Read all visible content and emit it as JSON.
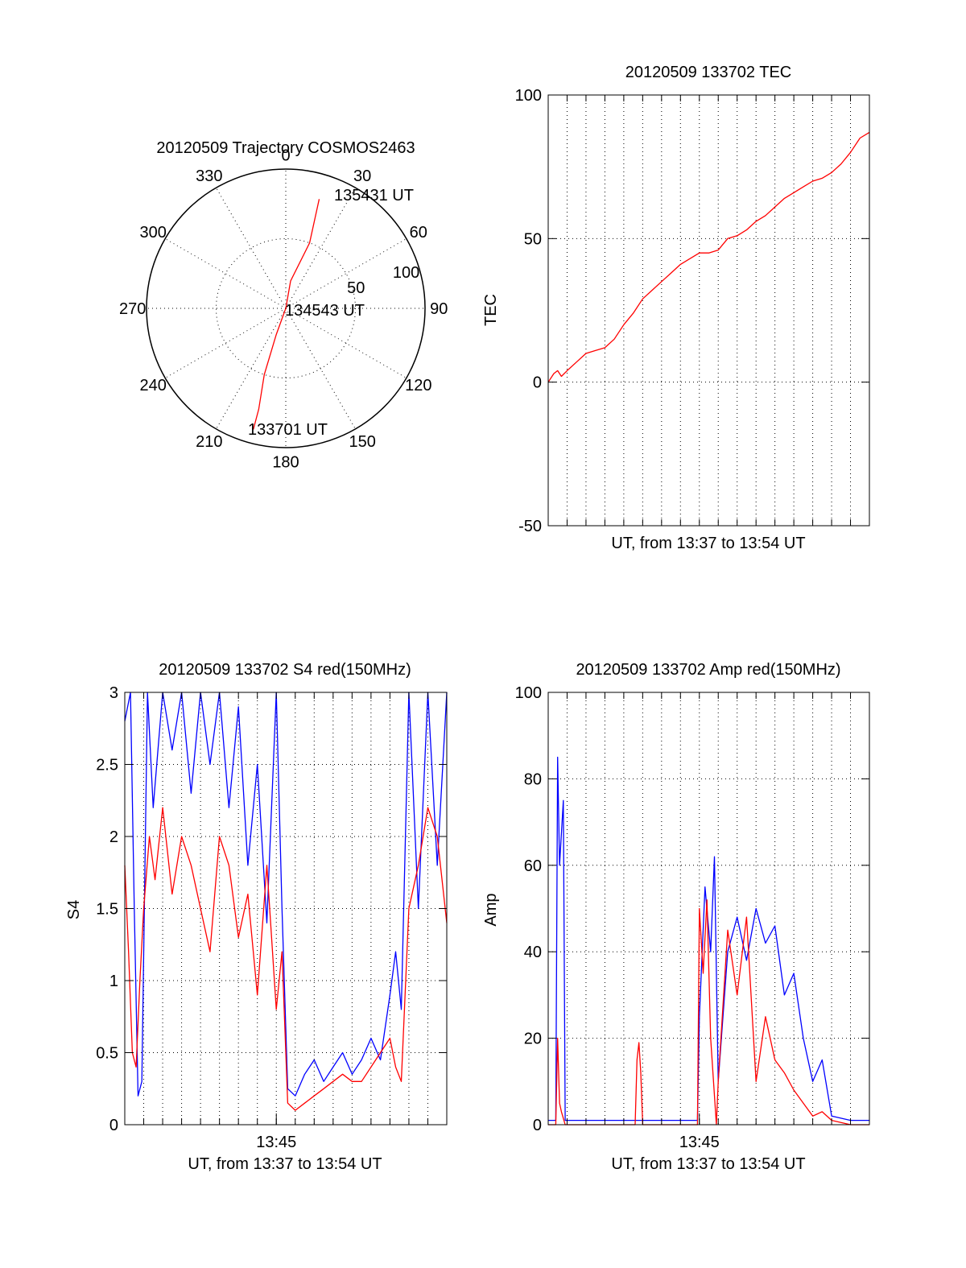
{
  "colors": {
    "red": "#ff0000",
    "blue": "#0000ff",
    "axis": "#000000",
    "grid": "#000000"
  },
  "chart_data": [
    {
      "id": "trajectory",
      "type": "polar",
      "title": "20120509 Trajectory COSMOS2463",
      "angle_labels": [
        "0",
        "30",
        "60",
        "90",
        "120",
        "150",
        "180",
        "210",
        "240",
        "270",
        "300",
        "330"
      ],
      "radial_labels": [
        "50",
        "100"
      ],
      "radial_values": [
        50,
        100
      ],
      "rmax": 100,
      "annotations": [
        "135431 UT",
        "134543 UT",
        "133701 UT"
      ],
      "series": [
        {
          "color": "red",
          "points": [
            [
              17,
              82
            ],
            [
              20,
              50
            ],
            [
              10,
              20
            ],
            [
              0,
              0
            ],
            [
              200,
              20
            ],
            [
              198,
              50
            ],
            [
              195,
              75
            ],
            [
              195,
              90
            ]
          ]
        }
      ]
    },
    {
      "id": "tec",
      "type": "line",
      "title": "20120509 133702 TEC",
      "xlabel": "UT, from 13:37 to 13:54 UT",
      "ylabel": "TEC",
      "xlim": [
        0,
        17
      ],
      "ylim": [
        -50,
        100
      ],
      "yticks": [
        -50,
        0,
        50,
        100
      ],
      "ytick_labels": [
        "-50",
        "0",
        "50",
        "100"
      ],
      "xtick_labels": [],
      "series": [
        {
          "color": "red",
          "x": [
            0,
            0.3,
            0.5,
            0.7,
            1,
            1.5,
            2,
            2.5,
            3,
            3.5,
            4,
            4.5,
            5,
            5.5,
            6,
            6.5,
            7,
            7.5,
            8,
            8.5,
            9,
            9.5,
            10,
            10.5,
            11,
            11.5,
            12,
            12.5,
            13,
            13.5,
            14,
            14.5,
            15,
            15.5,
            16,
            16.5,
            17
          ],
          "y": [
            0,
            3,
            4,
            2,
            4,
            7,
            10,
            11,
            12,
            15,
            20,
            24,
            29,
            32,
            35,
            38,
            41,
            43,
            45,
            45,
            46,
            50,
            51,
            53,
            56,
            58,
            61,
            64,
            66,
            68,
            70,
            71,
            73,
            76,
            80,
            85,
            87
          ]
        }
      ]
    },
    {
      "id": "s4",
      "type": "line",
      "title": "20120509 133702 S4 red(150MHz)",
      "xlabel": "UT, from 13:37 to 13:54 UT",
      "ylabel": "S4",
      "xlim": [
        0,
        17
      ],
      "ylim": [
        0,
        3
      ],
      "yticks": [
        0,
        0.5,
        1,
        1.5,
        2,
        2.5,
        3
      ],
      "ytick_labels": [
        "0",
        "0.5",
        "1",
        "1.5",
        "2",
        "2.5",
        "3"
      ],
      "xticks": [
        8
      ],
      "xtick_labels": [
        "13:45"
      ],
      "series": [
        {
          "color": "blue",
          "x": [
            0,
            0.3,
            0.5,
            0.7,
            0.9,
            1.2,
            1.5,
            2,
            2.5,
            3,
            3.5,
            4,
            4.5,
            5,
            5.5,
            6,
            6.5,
            7,
            7.5,
            8,
            8.3,
            8.6,
            9,
            9.5,
            10,
            10.5,
            11,
            11.5,
            12,
            12.5,
            13,
            13.5,
            14,
            14.3,
            14.6,
            15,
            15.5,
            16,
            16.5,
            17
          ],
          "y": [
            2.8,
            3,
            1.5,
            0.2,
            0.3,
            3,
            2.2,
            3,
            2.6,
            3,
            2.3,
            3,
            2.5,
            3,
            2.2,
            2.9,
            1.8,
            2.5,
            1.4,
            3,
            1.5,
            0.25,
            0.2,
            0.35,
            0.45,
            0.3,
            0.4,
            0.5,
            0.35,
            0.45,
            0.6,
            0.45,
            0.9,
            1.2,
            0.8,
            3,
            1.5,
            3,
            1.8,
            3
          ]
        },
        {
          "color": "red",
          "x": [
            0,
            0.2,
            0.4,
            0.6,
            0.8,
            1,
            1.3,
            1.6,
            2,
            2.5,
            3,
            3.5,
            4,
            4.5,
            5,
            5.5,
            6,
            6.5,
            7,
            7.5,
            8,
            8.3,
            8.6,
            9,
            9.5,
            10,
            10.5,
            11,
            11.5,
            12,
            12.5,
            13,
            13.5,
            14,
            14.3,
            14.6,
            15,
            15.5,
            16,
            16.5,
            17
          ],
          "y": [
            1.8,
            1.2,
            0.5,
            0.4,
            1.0,
            1.5,
            2.0,
            1.7,
            2.2,
            1.6,
            2.0,
            1.8,
            1.5,
            1.2,
            2.0,
            1.8,
            1.3,
            1.6,
            0.9,
            1.8,
            0.8,
            1.2,
            0.15,
            0.1,
            0.15,
            0.2,
            0.25,
            0.3,
            0.35,
            0.3,
            0.3,
            0.4,
            0.5,
            0.6,
            0.4,
            0.3,
            1.5,
            1.8,
            2.2,
            2.0,
            1.4
          ]
        }
      ]
    },
    {
      "id": "amp",
      "type": "line",
      "title": "20120509 133702 Amp red(150MHz)",
      "xlabel": "UT, from 13:37 to 13:54 UT",
      "ylabel": "Amp",
      "xlim": [
        0,
        17
      ],
      "ylim": [
        0,
        100
      ],
      "yticks": [
        0,
        20,
        40,
        60,
        80,
        100
      ],
      "ytick_labels": [
        "0",
        "20",
        "40",
        "60",
        "80",
        "100"
      ],
      "xticks": [
        8
      ],
      "xtick_labels": [
        "13:45"
      ],
      "series": [
        {
          "color": "blue",
          "x": [
            0,
            0.4,
            0.5,
            0.6,
            0.8,
            0.9,
            1.0,
            2,
            3,
            4,
            5,
            6,
            7,
            7.9,
            8.0,
            8.3,
            8.6,
            8.8,
            9.0,
            9.5,
            10,
            10.5,
            11,
            11.5,
            12,
            12.5,
            13,
            13.5,
            14,
            14.5,
            15,
            16,
            17
          ],
          "y": [
            1,
            1,
            85,
            60,
            75,
            1,
            1,
            1,
            1,
            1,
            1,
            1,
            1,
            1,
            25,
            55,
            40,
            62,
            10,
            40,
            48,
            38,
            50,
            42,
            46,
            30,
            35,
            20,
            10,
            15,
            2,
            1,
            1
          ]
        },
        {
          "color": "red",
          "x": [
            0,
            0.4,
            0.5,
            0.6,
            0.7,
            0.9,
            4.6,
            4.7,
            4.8,
            4.9,
            5.0,
            7.9,
            8.0,
            8.2,
            8.4,
            8.6,
            8.9,
            9.0,
            9.5,
            10,
            10.5,
            11,
            11.5,
            12,
            12.5,
            13,
            13.5,
            14,
            14.5,
            15,
            16,
            17
          ],
          "y": [
            0,
            0,
            20,
            5,
            3,
            0,
            0,
            15,
            19,
            12,
            0,
            0,
            50,
            35,
            52,
            20,
            0,
            10,
            45,
            30,
            48,
            10,
            25,
            15,
            12,
            8,
            5,
            2,
            3,
            1,
            0,
            0
          ]
        }
      ]
    }
  ]
}
